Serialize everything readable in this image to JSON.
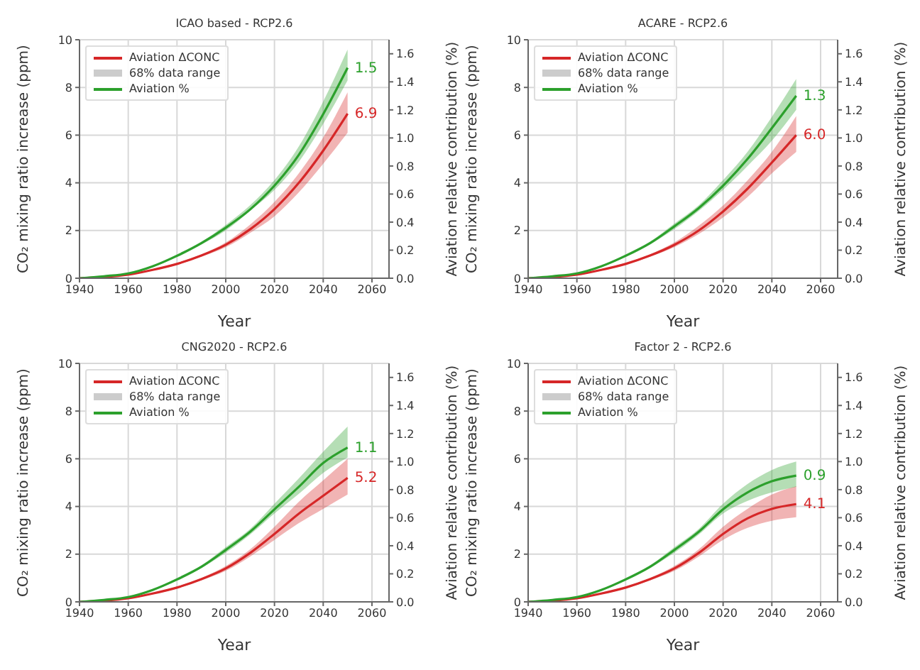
{
  "chart_data": [
    {
      "type": "line",
      "title": "ICAO based - RCP2.6",
      "xlabel": "Year",
      "ylabel": "CO₂ mixing ratio increase (ppm)",
      "y2label": "Aviation relative contribution (%)",
      "x": [
        1940,
        1950,
        1960,
        1970,
        1980,
        1990,
        2000,
        2010,
        2020,
        2030,
        2040,
        2050
      ],
      "xlim": [
        1940,
        2067
      ],
      "xticks": [
        1940,
        1960,
        1980,
        2000,
        2020,
        2040,
        2060
      ],
      "ylim": [
        0,
        10
      ],
      "yticks": [
        0,
        2,
        4,
        6,
        8,
        10
      ],
      "y2lim": [
        0,
        1.7
      ],
      "y2ticks": [
        {
          "value": 0,
          "label": "0.0"
        },
        {
          "value": 0.2,
          "label": "0.2"
        },
        {
          "value": 0.4,
          "label": "0.4"
        },
        {
          "value": 0.6,
          "label": "0.6"
        },
        {
          "value": 0.8,
          "label": "0.8"
        },
        {
          "value": 1.0,
          "label": "1.0"
        },
        {
          "value": 1.2,
          "label": "1.2"
        },
        {
          "value": 1.4,
          "label": "1.4"
        },
        {
          "value": 1.6,
          "label": "1.6"
        }
      ],
      "grid": true,
      "legend": "top left",
      "series": [
        {
          "name": "Aviation ΔCONC",
          "color": "#d62728",
          "values": [
            0,
            0.05,
            0.15,
            0.35,
            0.6,
            0.95,
            1.4,
            2.05,
            2.9,
            4.0,
            5.35,
            6.9
          ],
          "lower": [
            0,
            0.04,
            0.13,
            0.32,
            0.56,
            0.9,
            1.3,
            1.9,
            2.6,
            3.6,
            4.8,
            6.1
          ],
          "upper": [
            0,
            0.06,
            0.17,
            0.38,
            0.64,
            1.0,
            1.5,
            2.25,
            3.2,
            4.4,
            5.9,
            7.8
          ],
          "value_labels": [
            null,
            null,
            null,
            null,
            null,
            null,
            null,
            null,
            null,
            null,
            null,
            "6.9"
          ]
        },
        {
          "name": "68% data range",
          "type": "area",
          "color": "#cccccc",
          "values": [
            null,
            null,
            null,
            null,
            null,
            null,
            null,
            null,
            null,
            null,
            null,
            null
          ]
        },
        {
          "name": "Aviation %",
          "color": "#2ca02c",
          "axis": "y2",
          "values": [
            0,
            0.014,
            0.034,
            0.085,
            0.16,
            0.25,
            0.36,
            0.49,
            0.66,
            0.88,
            1.17,
            1.5
          ],
          "lower": [
            0,
            0.012,
            0.031,
            0.08,
            0.15,
            0.24,
            0.34,
            0.48,
            0.63,
            0.83,
            1.1,
            1.41
          ],
          "upper": [
            0,
            0.016,
            0.037,
            0.09,
            0.17,
            0.26,
            0.38,
            0.52,
            0.7,
            0.94,
            1.26,
            1.63
          ],
          "value_labels": [
            null,
            null,
            null,
            null,
            null,
            null,
            null,
            null,
            null,
            null,
            null,
            "1.5"
          ]
        }
      ]
    },
    {
      "type": "line",
      "title": "ACARE - RCP2.6",
      "xlabel": "Year",
      "ylabel": "CO₂ mixing ratio increase (ppm)",
      "y2label": "Aviation relative contribution (%)",
      "x": [
        1940,
        1950,
        1960,
        1970,
        1980,
        1990,
        2000,
        2010,
        2020,
        2030,
        2040,
        2050
      ],
      "xlim": [
        1940,
        2067
      ],
      "xticks": [
        1940,
        1960,
        1980,
        2000,
        2020,
        2040,
        2060
      ],
      "ylim": [
        0,
        10
      ],
      "yticks": [
        0,
        2,
        4,
        6,
        8,
        10
      ],
      "y2lim": [
        0,
        1.7
      ],
      "y2ticks": [
        {
          "value": 0,
          "label": "0.0"
        },
        {
          "value": 0.2,
          "label": "0.2"
        },
        {
          "value": 0.4,
          "label": "0.4"
        },
        {
          "value": 0.6,
          "label": "0.6"
        },
        {
          "value": 0.8,
          "label": "0.8"
        },
        {
          "value": 1.0,
          "label": "1.0"
        },
        {
          "value": 1.2,
          "label": "1.2"
        },
        {
          "value": 1.4,
          "label": "1.4"
        },
        {
          "value": 1.6,
          "label": "1.6"
        }
      ],
      "grid": true,
      "legend": "top left",
      "series": [
        {
          "name": "Aviation ΔCONC",
          "color": "#d62728",
          "values": [
            0,
            0.05,
            0.15,
            0.35,
            0.6,
            0.95,
            1.4,
            2.0,
            2.8,
            3.75,
            4.85,
            6.0
          ],
          "lower": [
            0,
            0.04,
            0.13,
            0.32,
            0.56,
            0.9,
            1.3,
            1.85,
            2.55,
            3.4,
            4.4,
            5.3
          ],
          "upper": [
            0,
            0.06,
            0.17,
            0.38,
            0.64,
            1.0,
            1.5,
            2.2,
            3.05,
            4.1,
            5.3,
            6.8
          ],
          "value_labels": [
            null,
            null,
            null,
            null,
            null,
            null,
            null,
            null,
            null,
            null,
            null,
            "6.0"
          ]
        },
        {
          "name": "68% data range",
          "type": "area",
          "color": "#cccccc",
          "values": [
            null,
            null,
            null,
            null,
            null,
            null,
            null,
            null,
            null,
            null,
            null,
            null
          ]
        },
        {
          "name": "Aviation %",
          "color": "#2ca02c",
          "axis": "y2",
          "values": [
            0,
            0.014,
            0.034,
            0.085,
            0.16,
            0.25,
            0.37,
            0.5,
            0.66,
            0.85,
            1.07,
            1.3
          ],
          "lower": [
            0,
            0.012,
            0.031,
            0.08,
            0.15,
            0.24,
            0.35,
            0.48,
            0.63,
            0.8,
            0.98,
            1.2
          ],
          "upper": [
            0,
            0.016,
            0.037,
            0.09,
            0.17,
            0.26,
            0.39,
            0.52,
            0.7,
            0.9,
            1.15,
            1.42
          ],
          "value_labels": [
            null,
            null,
            null,
            null,
            null,
            null,
            null,
            null,
            null,
            null,
            null,
            "1.3"
          ]
        }
      ]
    },
    {
      "type": "line",
      "title": "CNG2020 - RCP2.6",
      "xlabel": "Year",
      "ylabel": "CO₂ mixing ratio increase (ppm)",
      "y2label": "Aviation relative contribution (%)",
      "x": [
        1940,
        1950,
        1960,
        1970,
        1980,
        1990,
        2000,
        2010,
        2020,
        2030,
        2040,
        2050
      ],
      "xlim": [
        1940,
        2067
      ],
      "xticks": [
        1940,
        1960,
        1980,
        2000,
        2020,
        2040,
        2060
      ],
      "ylim": [
        0,
        10
      ],
      "yticks": [
        0,
        2,
        4,
        6,
        8,
        10
      ],
      "y2lim": [
        0,
        1.7
      ],
      "y2ticks": [
        {
          "value": 0,
          "label": "0.0"
        },
        {
          "value": 0.2,
          "label": "0.2"
        },
        {
          "value": 0.4,
          "label": "0.4"
        },
        {
          "value": 0.6,
          "label": "0.6"
        },
        {
          "value": 0.8,
          "label": "0.8"
        },
        {
          "value": 1.0,
          "label": "1.0"
        },
        {
          "value": 1.2,
          "label": "1.2"
        },
        {
          "value": 1.4,
          "label": "1.4"
        },
        {
          "value": 1.6,
          "label": "1.6"
        }
      ],
      "grid": true,
      "legend": "top left",
      "series": [
        {
          "name": "Aviation ΔCONC",
          "color": "#d62728",
          "values": [
            0,
            0.05,
            0.15,
            0.35,
            0.6,
            0.95,
            1.4,
            2.05,
            2.85,
            3.7,
            4.45,
            5.2
          ],
          "lower": [
            0,
            0.04,
            0.13,
            0.32,
            0.56,
            0.9,
            1.3,
            1.9,
            2.6,
            3.3,
            3.9,
            4.5
          ],
          "upper": [
            0,
            0.06,
            0.17,
            0.38,
            0.64,
            1.0,
            1.5,
            2.2,
            3.15,
            4.2,
            5.1,
            6.0
          ],
          "value_labels": [
            null,
            null,
            null,
            null,
            null,
            null,
            null,
            null,
            null,
            null,
            null,
            "5.2"
          ]
        },
        {
          "name": "68% data range",
          "type": "area",
          "color": "#cccccc",
          "values": [
            null,
            null,
            null,
            null,
            null,
            null,
            null,
            null,
            null,
            null,
            null,
            null
          ]
        },
        {
          "name": "Aviation %",
          "color": "#2ca02c",
          "axis": "y2",
          "values": [
            0,
            0.014,
            0.034,
            0.085,
            0.16,
            0.25,
            0.37,
            0.5,
            0.66,
            0.82,
            0.99,
            1.1
          ],
          "lower": [
            0,
            0.012,
            0.031,
            0.08,
            0.15,
            0.24,
            0.35,
            0.48,
            0.63,
            0.77,
            0.92,
            1.03
          ],
          "upper": [
            0,
            0.016,
            0.037,
            0.09,
            0.17,
            0.26,
            0.39,
            0.52,
            0.7,
            0.88,
            1.07,
            1.25
          ],
          "value_labels": [
            null,
            null,
            null,
            null,
            null,
            null,
            null,
            null,
            null,
            null,
            null,
            "1.1"
          ]
        }
      ]
    },
    {
      "type": "line",
      "title": "Factor 2 - RCP2.6",
      "xlabel": "Year",
      "ylabel": "CO₂ mixing ratio increase (ppm)",
      "y2label": "Aviation relative contribution (%)",
      "x": [
        1940,
        1950,
        1960,
        1970,
        1980,
        1990,
        2000,
        2010,
        2020,
        2030,
        2040,
        2050
      ],
      "xlim": [
        1940,
        2067
      ],
      "xticks": [
        1940,
        1960,
        1980,
        2000,
        2020,
        2040,
        2060
      ],
      "ylim": [
        0,
        10
      ],
      "yticks": [
        0,
        2,
        4,
        6,
        8,
        10
      ],
      "y2lim": [
        0,
        1.7
      ],
      "y2ticks": [
        {
          "value": 0,
          "label": "0.0"
        },
        {
          "value": 0.2,
          "label": "0.2"
        },
        {
          "value": 0.4,
          "label": "0.4"
        },
        {
          "value": 0.6,
          "label": "0.6"
        },
        {
          "value": 0.8,
          "label": "0.8"
        },
        {
          "value": 1.0,
          "label": "1.0"
        },
        {
          "value": 1.2,
          "label": "1.2"
        },
        {
          "value": 1.4,
          "label": "1.4"
        },
        {
          "value": 1.6,
          "label": "1.6"
        }
      ],
      "grid": true,
      "legend": "top left",
      "series": [
        {
          "name": "Aviation ΔCONC",
          "color": "#d62728",
          "values": [
            0,
            0.05,
            0.15,
            0.35,
            0.6,
            0.95,
            1.4,
            2.05,
            2.85,
            3.5,
            3.9,
            4.1
          ],
          "lower": [
            0,
            0.04,
            0.13,
            0.32,
            0.56,
            0.9,
            1.3,
            1.9,
            2.6,
            3.1,
            3.4,
            3.55
          ],
          "upper": [
            0,
            0.06,
            0.17,
            0.38,
            0.64,
            1.0,
            1.5,
            2.2,
            3.15,
            3.9,
            4.5,
            4.85
          ],
          "value_labels": [
            null,
            null,
            null,
            null,
            null,
            null,
            null,
            null,
            null,
            null,
            null,
            "4.1"
          ]
        },
        {
          "name": "68% data range",
          "type": "area",
          "color": "#cccccc",
          "values": [
            null,
            null,
            null,
            null,
            null,
            null,
            null,
            null,
            null,
            null,
            null,
            null
          ]
        },
        {
          "name": "Aviation %",
          "color": "#2ca02c",
          "axis": "y2",
          "values": [
            0,
            0.014,
            0.034,
            0.085,
            0.16,
            0.25,
            0.37,
            0.5,
            0.66,
            0.78,
            0.86,
            0.9
          ],
          "lower": [
            0,
            0.012,
            0.031,
            0.08,
            0.15,
            0.24,
            0.35,
            0.48,
            0.63,
            0.72,
            0.78,
            0.82
          ],
          "upper": [
            0,
            0.016,
            0.037,
            0.09,
            0.17,
            0.26,
            0.39,
            0.52,
            0.7,
            0.84,
            0.94,
            1.0
          ],
          "value_labels": [
            null,
            null,
            null,
            null,
            null,
            null,
            null,
            null,
            null,
            null,
            null,
            "0.9"
          ]
        }
      ]
    }
  ]
}
